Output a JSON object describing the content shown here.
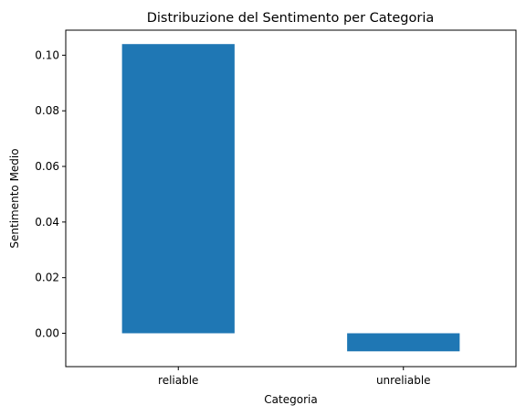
{
  "chart_data": {
    "type": "bar",
    "title": "Distribuzione del Sentimento per Categoria",
    "xlabel": "Categoria",
    "ylabel": "Sentimento Medio",
    "categories": [
      "reliable",
      "unreliable"
    ],
    "values": [
      0.104,
      -0.0065
    ],
    "ylim": [
      -0.012,
      0.109
    ],
    "yticks": [
      0.0,
      0.02,
      0.04,
      0.06,
      0.08,
      0.1
    ],
    "ytick_labels": [
      "0.00",
      "0.02",
      "0.04",
      "0.06",
      "0.08",
      "0.10"
    ],
    "bar_color": "#1f77b4",
    "grid": false,
    "legend": "none"
  }
}
